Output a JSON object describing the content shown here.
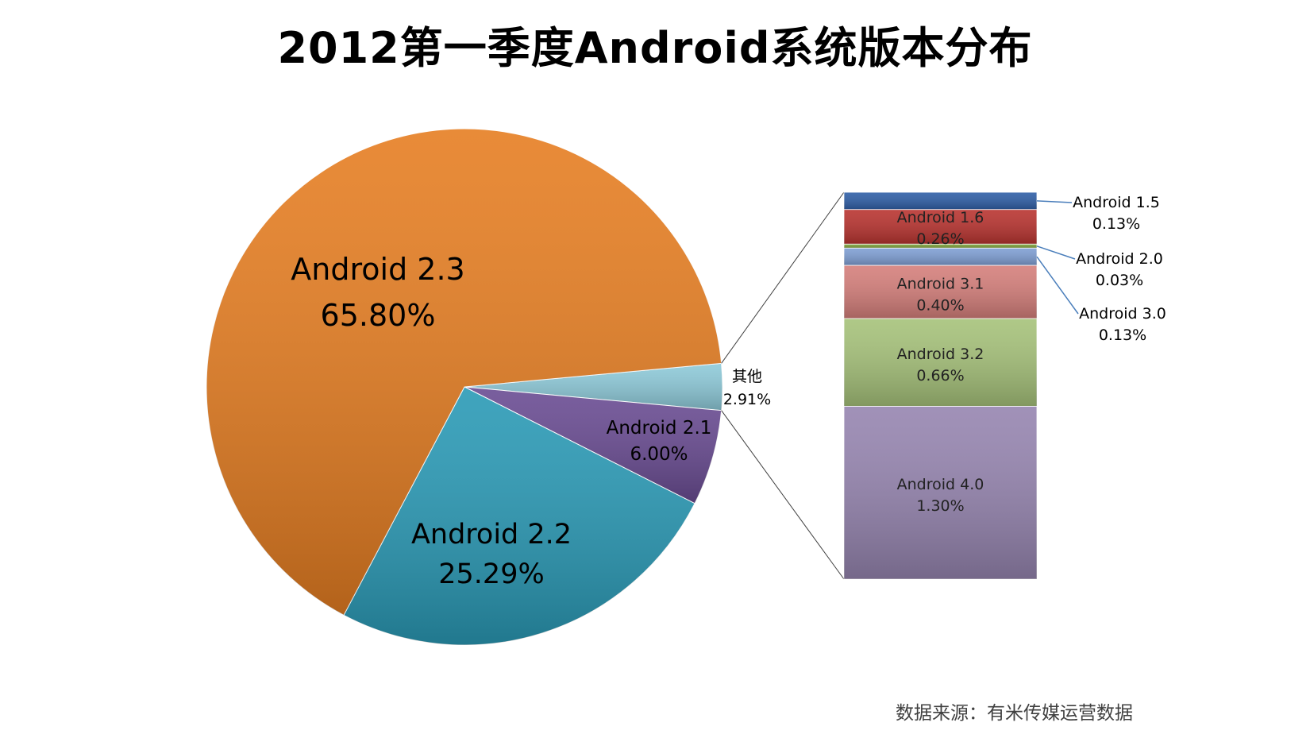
{
  "title": "2012第一季度Android系统版本分布",
  "source_note": "数据来源：有米传媒运营数据",
  "chart_data": {
    "type": "pie",
    "title": "2012第一季度Android系统版本分布",
    "pie": [
      {
        "label": "Android 2.3",
        "value": 65.8,
        "display": "65.80%",
        "color": "#E67E22"
      },
      {
        "label": "Android 2.2",
        "value": 25.29,
        "display": "25.29%",
        "color": "#2A9AB6"
      },
      {
        "label": "Android 2.1",
        "value": 6.0,
        "display": "6.00%",
        "color": "#6A4C93"
      },
      {
        "label": "其他",
        "value": 2.91,
        "display": "2.91%",
        "color": "#8ECAD9"
      }
    ],
    "breakdown_of": "其他",
    "breakdown": [
      {
        "label": "Android 1.5",
        "value": 0.13,
        "display": "0.13%",
        "color": "#2F5FA7"
      },
      {
        "label": "Android 1.6",
        "value": 0.26,
        "display": "0.26%",
        "color": "#B93430"
      },
      {
        "label": "Android 2.0",
        "value": 0.03,
        "display": "0.03%",
        "color": "#7FA23C"
      },
      {
        "label": "Android 3.0",
        "value": 0.13,
        "display": "0.13%",
        "color": "#7F9FD4"
      },
      {
        "label": "Android 3.1",
        "value": 0.4,
        "display": "0.40%",
        "color": "#D57F7B"
      },
      {
        "label": "Android 3.2",
        "value": 0.66,
        "display": "0.66%",
        "color": "#A6C27A"
      },
      {
        "label": "Android 4.0",
        "value": 1.3,
        "display": "1.30%",
        "color": "#9685B0"
      }
    ]
  }
}
